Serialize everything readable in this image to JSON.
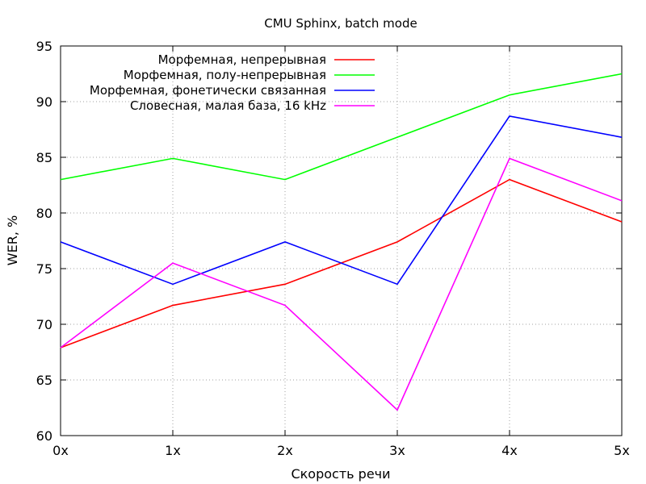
{
  "chart_data": {
    "type": "line",
    "title": "CMU Sphinx, batch mode",
    "xlabel": "Скорость речи",
    "ylabel": "WER, %",
    "categories": [
      "0x",
      "1x",
      "2x",
      "3x",
      "4x",
      "5x"
    ],
    "yticks": [
      "60",
      "65",
      "70",
      "75",
      "80",
      "85",
      "90",
      "95"
    ],
    "ylim": [
      60,
      95
    ],
    "grid": true,
    "legend_position": "top-left",
    "series": [
      {
        "name": "Морфемная, непрерывная",
        "color": "#ff0000",
        "values": [
          67.9,
          71.7,
          73.6,
          77.4,
          83.0,
          79.2
        ]
      },
      {
        "name": "Морфемная, полу-непрерывная",
        "color": "#00ff00",
        "values": [
          83.0,
          84.9,
          83.0,
          86.8,
          90.6,
          92.5
        ]
      },
      {
        "name": "Морфемная, фонетически связанная",
        "color": "#0000ff",
        "values": [
          77.4,
          73.6,
          77.4,
          73.6,
          88.7,
          86.8
        ]
      },
      {
        "name": "Словесная, малая база, 16 kHz",
        "color": "#ff00ff",
        "values": [
          67.9,
          75.5,
          71.7,
          62.3,
          84.9,
          81.1
        ]
      }
    ]
  }
}
